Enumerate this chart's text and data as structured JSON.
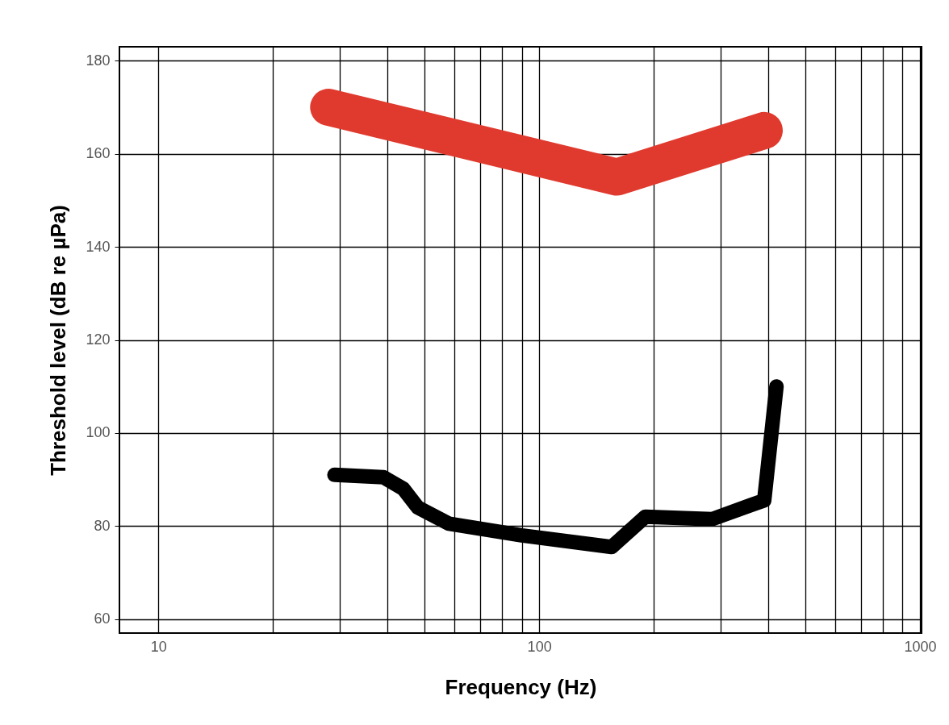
{
  "chart_data": {
    "type": "line",
    "xlabel": "Frequency (Hz)",
    "ylabel": "Threshold level (dB re µPa)",
    "log": "x",
    "xlim": [
      7.9,
      1010
    ],
    "ylim": [
      57,
      183
    ],
    "xticks": [
      10,
      {
        "value": 20,
        "label": null
      },
      {
        "value": 30,
        "label": null
      },
      {
        "value": 40,
        "label": null
      },
      {
        "value": 50,
        "label": null
      },
      {
        "value": 60,
        "label": null
      },
      {
        "value": 70,
        "label": null
      },
      {
        "value": 80,
        "label": null
      },
      {
        "value": 90,
        "label": null
      },
      100,
      {
        "value": 200,
        "label": null
      },
      {
        "value": 300,
        "label": null
      },
      {
        "value": 400,
        "label": null
      },
      {
        "value": 500,
        "label": null
      },
      {
        "value": 600,
        "label": null
      },
      {
        "value": 700,
        "label": null
      },
      {
        "value": 800,
        "label": null
      },
      {
        "value": 900,
        "label": null
      },
      1000
    ],
    "yticks": [
      60,
      80,
      100,
      120,
      140,
      160,
      180
    ],
    "grid": true,
    "line_style": "solid",
    "series": [
      {
        "color": "#e03a2e",
        "x": [
          28,
          160,
          390
        ],
        "values": [
          170,
          155,
          165
        ]
      },
      {
        "color": "#000000",
        "x": [
          29,
          39,
          44,
          48,
          58,
          90,
          155,
          190,
          285,
          360,
          390,
          420
        ],
        "values": [
          91,
          90.5,
          88,
          84,
          80.5,
          78,
          75.5,
          82,
          81.5,
          84.5,
          85.5,
          110
        ]
      }
    ]
  }
}
